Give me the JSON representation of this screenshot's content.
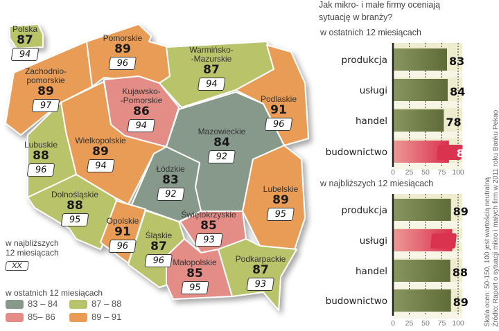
{
  "colors": {
    "83-84": "#86998b",
    "85-86": "#e38d86",
    "87-88": "#b9c36b",
    "89-91": "#e99c55",
    "highlight": "#d93350",
    "bar": "#6f7d45"
  },
  "national": {
    "name": "Polska",
    "last12": 87,
    "next12": 94
  },
  "regions": [
    {
      "name": "Zachodnio-\npomorskie",
      "last12": 89,
      "next12": 97
    },
    {
      "name": "Pomorskie",
      "last12": 89,
      "next12": 96
    },
    {
      "name": "Warmińsko-\n-Mazurskie",
      "last12": 87,
      "next12": 94
    },
    {
      "name": "Podlaskie",
      "last12": 91,
      "next12": 96
    },
    {
      "name": "Kujawsko-\n-Pomorskie",
      "last12": 86,
      "next12": 94
    },
    {
      "name": "Wielkopolskie",
      "last12": 89,
      "next12": 94
    },
    {
      "name": "Lubuskie",
      "last12": 88,
      "next12": 96
    },
    {
      "name": "Dolnośląskie",
      "last12": 88,
      "next12": 95
    },
    {
      "name": "Mazowieckie",
      "last12": 84,
      "next12": 92
    },
    {
      "name": "Łódzkie",
      "last12": 83,
      "next12": 92
    },
    {
      "name": "Lubelskie",
      "last12": 89,
      "next12": 95
    },
    {
      "name": "Opolskie",
      "last12": 91,
      "next12": 96
    },
    {
      "name": "Świętokrzyskie",
      "last12": 85,
      "next12": 93
    },
    {
      "name": "Śląskie",
      "last12": 87,
      "next12": 96
    },
    {
      "name": "Małopolskie",
      "last12": 85,
      "next12": 95
    },
    {
      "name": "Podkarpackie",
      "last12": 87,
      "next12": 93
    }
  ],
  "legend": {
    "next_label": "w najbliższych\n12 miesiącach",
    "next_box": "XX",
    "last_label": "w ostatnich 12 miesiącach",
    "ranges": [
      {
        "label": "83 – 84",
        "key": "83-84"
      },
      {
        "label": "87 – 88",
        "key": "87-88"
      },
      {
        "label": "85– 86",
        "key": "85-86"
      },
      {
        "label": "89 – 91",
        "key": "89-91"
      }
    ]
  },
  "chart_title": "Jak mikro- i małe firmy oceniają\nsytuację w branży?",
  "chart_data": [
    {
      "type": "bar",
      "orientation": "horizontal",
      "title": "w ostatnich 12 miesiącach",
      "categories": [
        "produkcja",
        "usługi",
        "handel",
        "budownictwo"
      ],
      "values": [
        83,
        84,
        78,
        86
      ],
      "highlight": "budownictwo",
      "xticks": [
        0,
        25,
        50,
        75,
        100
      ],
      "xlim": [
        0,
        100
      ],
      "grid": "dotted vertical"
    },
    {
      "type": "bar",
      "orientation": "horizontal",
      "title": "w najbliższych 12 miesiącach",
      "categories": [
        "produkcja",
        "usługi",
        "handel",
        "budownictwo"
      ],
      "values": [
        89,
        91,
        88,
        89
      ],
      "highlight": "usługi",
      "xticks": [
        0,
        25,
        50,
        75,
        100
      ],
      "xlim": [
        0,
        100
      ],
      "grid": "dotted vertical"
    }
  ],
  "notes": [
    "Skala ocen: 50-150, 100 jest wartością neutralną",
    "Źródło: Raport o sytuacji mikro i małych firm w 2011 roku Banku Pekao"
  ]
}
